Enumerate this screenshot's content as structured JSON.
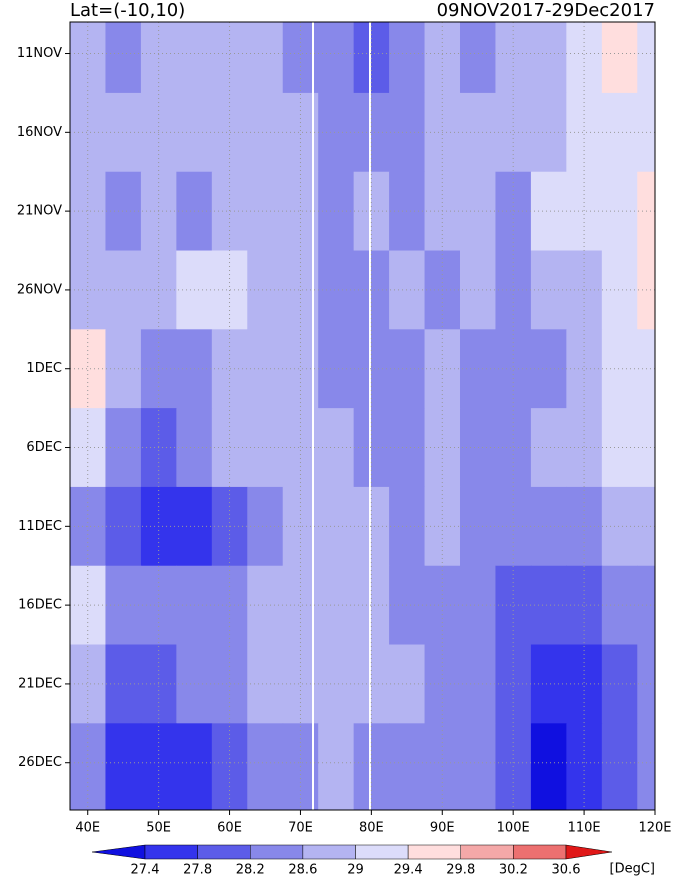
{
  "chart_data": {
    "type": "hovmoller",
    "title": "Lat=(-10,10)",
    "subtitle": "09NOV2017-29Dec2017",
    "colorbar_unit": "[DegC]",
    "x": [
      40,
      45,
      50,
      55,
      60,
      65,
      70,
      75,
      80,
      85,
      90,
      95,
      100,
      105,
      110,
      115,
      120
    ],
    "y": [
      10,
      15,
      20,
      25,
      30,
      35,
      40,
      45,
      50,
      55
    ],
    "values": [
      [
        28.6,
        28.4,
        28.6,
        28.8,
        28.8,
        28.6,
        28.4,
        28.2,
        27.8,
        28.4,
        28.6,
        28.4,
        28.6,
        28.8,
        29.2,
        29.4,
        29.2
      ],
      [
        28.6,
        28.6,
        28.6,
        28.6,
        28.6,
        28.8,
        28.6,
        28.4,
        28.4,
        28.4,
        28.6,
        28.6,
        28.6,
        28.8,
        29,
        29.2,
        29.2
      ],
      [
        28.6,
        28.4,
        28.6,
        28.4,
        28.6,
        28.6,
        28.8,
        28.4,
        28.6,
        28.2,
        28.6,
        28.8,
        28.4,
        29,
        29,
        29.2,
        29.4
      ],
      [
        28.6,
        28.8,
        28.6,
        29,
        29.2,
        28.8,
        28.6,
        28.4,
        28.4,
        28.6,
        28.4,
        28.6,
        28.4,
        28.6,
        28.8,
        29.2,
        29.4
      ],
      [
        29.4,
        28.6,
        28.2,
        28.4,
        28.6,
        28.8,
        28.6,
        28.4,
        28.4,
        28.4,
        28.6,
        28.4,
        28.4,
        28.4,
        28.6,
        29,
        29.2
      ],
      [
        29,
        28.4,
        28,
        28.2,
        28.6,
        28.6,
        28.6,
        28.6,
        28.4,
        28.4,
        28.6,
        28.4,
        28.4,
        28.6,
        28.8,
        29,
        29.2
      ],
      [
        28.4,
        27.8,
        27.6,
        27.6,
        28,
        28.4,
        28.6,
        28.6,
        28.6,
        28.4,
        28.6,
        28.4,
        28.2,
        28.2,
        28.4,
        28.6,
        28.8
      ],
      [
        29,
        28.2,
        28.2,
        28.4,
        28.4,
        28.6,
        28.8,
        28.6,
        28.6,
        28.4,
        28.4,
        28.2,
        28,
        27.8,
        28,
        28.2,
        28.4
      ],
      [
        28.6,
        28,
        28,
        28.2,
        28.4,
        28.8,
        28.6,
        28.6,
        28.6,
        28.6,
        28.4,
        28.2,
        27.8,
        27.4,
        27.6,
        28,
        28.4
      ],
      [
        28.2,
        27.6,
        27.4,
        27.6,
        28,
        28.4,
        28.4,
        28.6,
        28.4,
        28.4,
        28.4,
        28.2,
        27.8,
        27.2,
        27.4,
        28,
        28.2
      ]
    ],
    "xlim": [
      37.5,
      120
    ],
    "ylim": [
      8,
      58
    ],
    "xticks": [
      {
        "value": 40,
        "label": "40E"
      },
      {
        "value": 50,
        "label": "50E"
      },
      {
        "value": 60,
        "label": "60E"
      },
      {
        "value": 70,
        "label": "70E"
      },
      {
        "value": 80,
        "label": "80E"
      },
      {
        "value": 90,
        "label": "90E"
      },
      {
        "value": 100,
        "label": "100E"
      },
      {
        "value": 110,
        "label": "110E"
      },
      {
        "value": 120,
        "label": "120E"
      }
    ],
    "yticks": [
      {
        "value": 10,
        "label": "11NOV"
      },
      {
        "value": 15,
        "label": "16NOV"
      },
      {
        "value": 20,
        "label": "21NOV"
      },
      {
        "value": 25,
        "label": "26NOV"
      },
      {
        "value": 30,
        "label": "1DEC"
      },
      {
        "value": 35,
        "label": "6DEC"
      },
      {
        "value": 40,
        "label": "11DEC"
      },
      {
        "value": 45,
        "label": "16DEC"
      },
      {
        "value": 50,
        "label": "21DEC"
      },
      {
        "value": 55,
        "label": "26DEC"
      }
    ],
    "grid": true,
    "levels": [
      27.4,
      27.8,
      28.2,
      28.6,
      29,
      29.4,
      29.8,
      30.2,
      30.6
    ],
    "colors": [
      "#1010e0",
      "#3434ec",
      "#5c5ce8",
      "#8888ea",
      "#b4b4f2",
      "#dcdcfa",
      "#ffdede",
      "#f4a8a8",
      "#ec7070",
      "#e01818"
    ]
  }
}
